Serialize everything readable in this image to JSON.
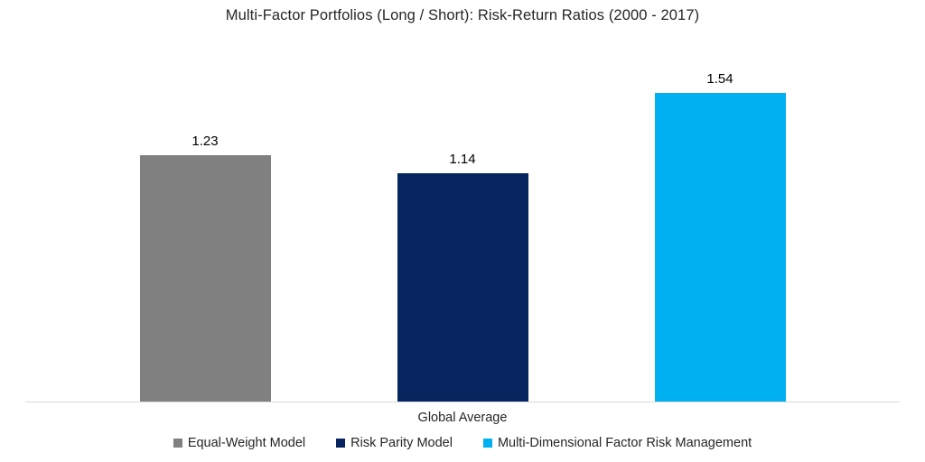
{
  "title": "Multi-Factor Portfolios (Long / Short): Risk-Return Ratios (2000 - 2017)",
  "chart_data": {
    "type": "bar",
    "title": "Multi-Factor Portfolios (Long / Short): Risk-Return Ratios (2000 - 2017)",
    "categories": [
      "Global Average"
    ],
    "series": [
      {
        "name": "Equal-Weight Model",
        "values": [
          1.23
        ],
        "labels": [
          "1.23"
        ],
        "color": "#808080"
      },
      {
        "name": "Risk Parity Model",
        "values": [
          1.14
        ],
        "labels": [
          "1.14"
        ],
        "color": "#06245e"
      },
      {
        "name": "Multi-Dimensional Factor Risk Management",
        "values": [
          1.54
        ],
        "labels": [
          "1.54"
        ],
        "color": "#00b0f0"
      }
    ],
    "xlabel": "Global Average",
    "ylabel": "",
    "ylim": [
      0,
      1.75
    ],
    "grid": false,
    "axis_line_color": "#d9d9d9",
    "legend_position": "bottom",
    "data_labels": true
  }
}
